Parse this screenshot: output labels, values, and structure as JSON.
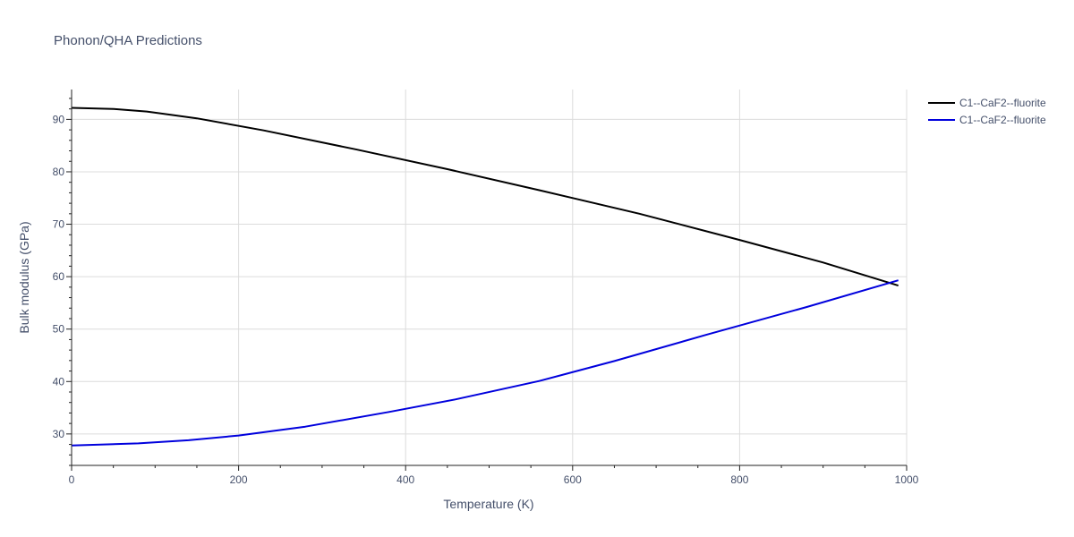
{
  "chart_data": {
    "type": "line",
    "title": "Phonon/QHA Predictions",
    "xlabel": "Temperature (K)",
    "ylabel": "Bulk modulus (GPa)",
    "xlim": [
      0,
      1000
    ],
    "ylim": [
      24,
      95.7
    ],
    "xticks": [
      0,
      200,
      400,
      600,
      800,
      1000
    ],
    "yticks": [
      30,
      40,
      50,
      60,
      70,
      80,
      90
    ],
    "grid": true,
    "legend_position": "top-right",
    "series": [
      {
        "name": "C1--CaF2--fluorite",
        "color": "#000000",
        "x": [
          0,
          50,
          90,
          150,
          230,
          340,
          450,
          560,
          680,
          800,
          900,
          990
        ],
        "y": [
          92.2,
          92.0,
          91.5,
          90.2,
          87.9,
          84.3,
          80.5,
          76.5,
          72.0,
          67.0,
          62.7,
          58.3
        ]
      },
      {
        "name": "C1--CaF2--fluorite",
        "color": "#0000dd",
        "x": [
          0,
          80,
          140,
          200,
          280,
          380,
          460,
          560,
          650,
          760,
          880,
          990
        ],
        "y": [
          27.8,
          28.2,
          28.8,
          29.7,
          31.4,
          34.2,
          36.6,
          40.1,
          43.9,
          48.9,
          54.2,
          59.3
        ]
      }
    ]
  }
}
